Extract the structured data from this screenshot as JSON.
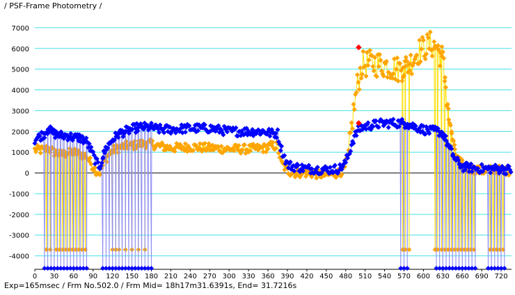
{
  "window": {
    "title": "/ PSF-Frame Photometry /"
  },
  "footer": {
    "status": "Exp=165msec / Frm No.502.0 / Frm Mid= 18h17m31.6391s,  End= 31.7216s"
  },
  "colors": {
    "gridline": "#40e0e8",
    "orange": "#ffa500",
    "orange_line": "#ffe000",
    "blue": "#0000ff",
    "blue_line": "#8c8cf0",
    "highlight": "#ff0000",
    "zero_line": "#000000"
  },
  "chart_data": {
    "type": "scatter",
    "title": "",
    "xlabel": "",
    "ylabel": "",
    "xlim": [
      0,
      736
    ],
    "ylim": [
      -4650,
      7600
    ],
    "x_ticks": [
      0,
      30,
      60,
      90,
      120,
      150,
      180,
      210,
      240,
      270,
      300,
      330,
      360,
      390,
      420,
      450,
      480,
      510,
      540,
      570,
      600,
      630,
      660,
      690,
      720
    ],
    "y_ticks": [
      -4000,
      -3000,
      -2000,
      -1000,
      0,
      1000,
      2000,
      3000,
      4000,
      5000,
      6000,
      7000
    ],
    "grid": true,
    "legend": "none",
    "series": [
      {
        "color": "#0000ff",
        "line_color": "#8c8cf0",
        "x": [
          0,
          15,
          20,
          30,
          40,
          50,
          60,
          70,
          80,
          88,
          95,
          100,
          110,
          120,
          130,
          140,
          150,
          160,
          170,
          180,
          190,
          210,
          240,
          270,
          300,
          330,
          355,
          365,
          375,
          380,
          390,
          400,
          420,
          450,
          470,
          478,
          485,
          490,
          498,
          505,
          520,
          540,
          560,
          570,
          580,
          590,
          600,
          610,
          620,
          630,
          640,
          650,
          660,
          670,
          690,
          710,
          736
        ],
        "values": [
          1600,
          1900,
          2100,
          1900,
          1800,
          1800,
          1700,
          1700,
          1500,
          1000,
          500,
          300,
          1200,
          1600,
          1900,
          2000,
          2100,
          2200,
          2200,
          2200,
          2100,
          2100,
          2150,
          2150,
          2000,
          2000,
          2000,
          1900,
          1900,
          1200,
          400,
          300,
          200,
          150,
          200,
          400,
          900,
          1500,
          2000,
          2200,
          2300,
          2400,
          2400,
          2400,
          2300,
          2200,
          2100,
          2000,
          2050,
          1900,
          1200,
          600,
          300,
          250,
          200,
          200,
          150
        ],
        "drops": [
          15,
          20,
          25,
          30,
          35,
          40,
          45,
          50,
          55,
          60,
          65,
          70,
          75,
          80,
          105,
          110,
          115,
          120,
          125,
          130,
          135,
          140,
          145,
          150,
          155,
          160,
          165,
          170,
          175,
          180,
          565,
          570,
          575,
          620,
          625,
          630,
          635,
          640,
          645,
          650,
          655,
          660,
          665,
          670,
          675,
          680,
          700,
          705,
          710,
          715,
          720,
          725
        ],
        "drop_value": -4600
      },
      {
        "color": "#ffa500",
        "line_color": "#ffe000",
        "x": [
          0,
          15,
          20,
          30,
          40,
          50,
          60,
          70,
          80,
          88,
          95,
          100,
          110,
          120,
          130,
          140,
          150,
          160,
          170,
          180,
          190,
          210,
          240,
          270,
          300,
          330,
          355,
          365,
          375,
          380,
          390,
          400,
          420,
          450,
          470,
          478,
          485,
          490,
          498,
          505,
          520,
          540,
          560,
          570,
          580,
          590,
          600,
          610,
          620,
          630,
          640,
          650,
          660,
          670,
          690,
          710,
          736
        ],
        "values": [
          1100,
          1100,
          1200,
          1000,
          900,
          950,
          1000,
          900,
          800,
          400,
          100,
          0,
          700,
          1100,
          1200,
          1300,
          1300,
          1400,
          1400,
          1400,
          1300,
          1200,
          1250,
          1200,
          1150,
          1150,
          1200,
          1300,
          1300,
          500,
          100,
          0,
          0,
          -100,
          0,
          200,
          1000,
          2500,
          4200,
          5200,
          5300,
          5200,
          5000,
          5100,
          5300,
          5800,
          6000,
          6200,
          6100,
          5500,
          2500,
          800,
          400,
          200,
          100,
          150,
          100
        ],
        "drops": [
          18,
          24,
          33,
          38,
          43,
          48,
          53,
          58,
          63,
          68,
          73,
          78,
          120,
          125,
          130,
          140,
          150,
          160,
          170,
          568,
          572,
          578,
          618,
          622,
          628,
          633,
          638,
          643,
          648,
          653,
          658,
          663,
          668,
          673,
          678,
          703,
          708,
          713,
          718,
          723
        ],
        "drop_value": -3700
      }
    ],
    "highlight_points": [
      {
        "x": 500,
        "y": 6050
      },
      {
        "x": 500,
        "y": 2400
      }
    ]
  }
}
